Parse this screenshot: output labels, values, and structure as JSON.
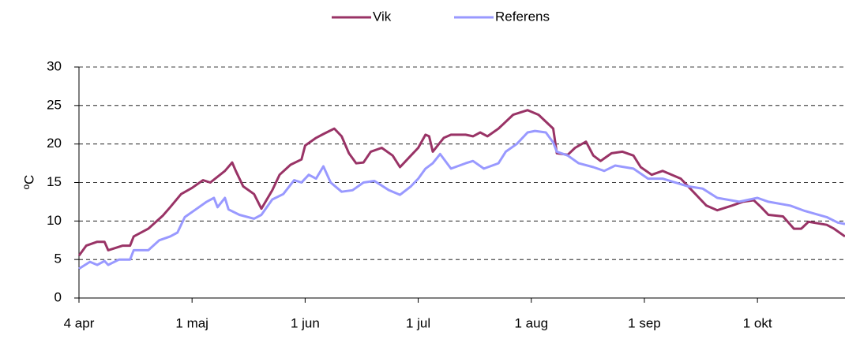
{
  "chart_data": {
    "type": "line",
    "y_label": "ºC",
    "xlim": [
      0,
      210
    ],
    "xticks": [
      {
        "value": 0,
        "label": "4 apr"
      },
      {
        "value": 31,
        "label": "1 maj"
      },
      {
        "value": 62,
        "label": "1 jun"
      },
      {
        "value": 93,
        "label": "1 jul"
      },
      {
        "value": 124,
        "label": "1 aug"
      },
      {
        "value": 155,
        "label": "1 sep"
      },
      {
        "value": 186,
        "label": "1 okt"
      }
    ],
    "ylim": [
      0,
      30
    ],
    "yticks": [
      0,
      5,
      10,
      15,
      20,
      25,
      30
    ],
    "grid": true,
    "legend": "top",
    "series": [
      {
        "name": "Vik",
        "color": "#993366",
        "x": [
          0,
          2,
          5,
          7,
          8,
          12,
          14,
          15,
          19,
          23,
          25,
          28,
          31,
          34,
          36,
          40,
          42,
          43,
          45,
          48,
          50,
          53,
          55,
          58,
          61,
          62,
          65,
          67,
          70,
          72,
          74,
          76,
          78,
          80,
          83,
          86,
          88,
          91,
          93,
          95,
          96,
          97,
          100,
          102,
          106,
          108,
          110,
          112,
          115,
          119,
          123,
          126,
          130,
          131,
          134,
          136,
          139,
          141,
          143,
          146,
          149,
          152,
          154,
          157,
          160,
          165,
          168,
          172,
          175,
          179,
          182,
          185,
          187,
          189,
          193,
          196,
          198,
          200,
          205,
          207,
          210
        ],
        "values": [
          5.5,
          6.8,
          7.3,
          7.3,
          6.2,
          6.8,
          6.8,
          8,
          9,
          10.7,
          11.8,
          13.5,
          14.3,
          15.3,
          15,
          16.5,
          17.6,
          16.5,
          14.5,
          13.5,
          11.6,
          14,
          16,
          17.3,
          18,
          19.8,
          20.8,
          21.3,
          22,
          21,
          18.8,
          17.5,
          17.6,
          19,
          19.5,
          18.5,
          17,
          18.5,
          19.5,
          21.2,
          21,
          19,
          20.8,
          21.2,
          21.2,
          21,
          21.5,
          21,
          22,
          23.8,
          24.4,
          23.8,
          22,
          18.8,
          18.6,
          19.5,
          20.3,
          18.5,
          17.8,
          18.8,
          19,
          18.5,
          17,
          16,
          16.5,
          15.5,
          14,
          12,
          11.4,
          12,
          12.5,
          12.7,
          11.8,
          10.8,
          10.6,
          9,
          9,
          9.9,
          9.5,
          9,
          8
        ]
      },
      {
        "name": "Referens",
        "color": "#9999ff",
        "x": [
          0,
          3,
          5,
          7,
          8,
          11,
          14,
          15,
          19,
          22,
          25,
          27,
          29,
          32,
          35,
          37,
          38,
          40,
          41,
          44,
          48,
          50,
          53,
          56,
          59,
          61,
          63,
          65,
          67,
          69,
          72,
          75,
          78,
          81,
          85,
          88,
          91,
          93,
          95,
          97,
          99,
          102,
          106,
          108,
          111,
          115,
          117,
          120,
          123,
          125,
          128,
          130,
          131,
          134,
          137,
          141,
          144,
          147,
          152,
          156,
          160,
          167,
          171,
          175,
          181,
          186,
          189,
          195,
          199,
          205,
          208,
          210
        ],
        "values": [
          3.8,
          4.7,
          4.3,
          4.8,
          4.3,
          5,
          5,
          6.2,
          6.2,
          7.5,
          8,
          8.5,
          10.5,
          11.5,
          12.5,
          13,
          11.8,
          13,
          11.5,
          10.8,
          10.3,
          10.8,
          12.8,
          13.5,
          15.3,
          15,
          16,
          15.5,
          17.1,
          15,
          13.8,
          14,
          15,
          15.2,
          14,
          13.4,
          14.5,
          15.5,
          16.8,
          17.5,
          18.7,
          16.8,
          17.5,
          17.8,
          16.8,
          17.5,
          19,
          20,
          21.5,
          21.7,
          21.5,
          20.2,
          19,
          18.5,
          17.5,
          17,
          16.5,
          17.2,
          16.8,
          15.5,
          15.5,
          14.5,
          14.2,
          13,
          12.5,
          13,
          12.5,
          12,
          11.3,
          10.5,
          9.8,
          9.6
        ]
      }
    ]
  }
}
